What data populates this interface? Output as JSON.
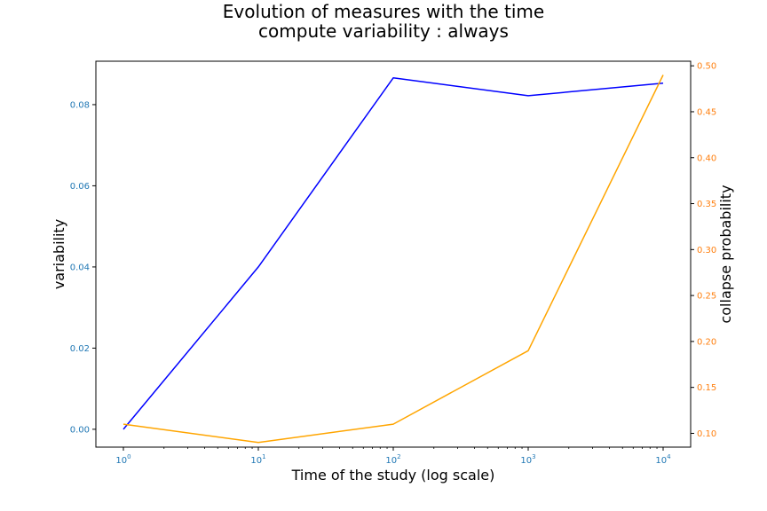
{
  "chart_data": {
    "type": "line",
    "title": "Evolution of measures with the time",
    "subtitle": "compute variability : always",
    "xlabel": "Time of the study (log scale)",
    "ylabel_left": "variability",
    "ylabel_right": "collapse probability",
    "x_scale": "log",
    "x_ticks": [
      {
        "base": "10",
        "exp": "0"
      },
      {
        "base": "10",
        "exp": "1"
      },
      {
        "base": "10",
        "exp": "2"
      },
      {
        "base": "10",
        "exp": "3"
      },
      {
        "base": "10",
        "exp": "4"
      }
    ],
    "x": [
      1,
      10,
      100,
      1000,
      10000
    ],
    "y_left_ticks": [
      "0.00",
      "0.02",
      "0.04",
      "0.06",
      "0.08"
    ],
    "y_right_ticks": [
      "0.10",
      "0.15",
      "0.20",
      "0.25",
      "0.30",
      "0.35",
      "0.40",
      "0.45",
      "0.50"
    ],
    "y_left_lim": [
      -0.0044,
      0.0907
    ],
    "y_right_lim": [
      0.085,
      0.505
    ],
    "grid": false,
    "series": [
      {
        "axis": "left",
        "color": "#0000ff",
        "values": [
          0.0,
          0.04,
          0.0866,
          0.0822,
          0.0853
        ]
      },
      {
        "axis": "right",
        "color": "#ffa500",
        "values": [
          0.11,
          0.09,
          0.11,
          0.19,
          0.49
        ]
      }
    ],
    "colors": {
      "left_axis": "#1f77b4",
      "right_axis": "#ff7f0e"
    }
  }
}
